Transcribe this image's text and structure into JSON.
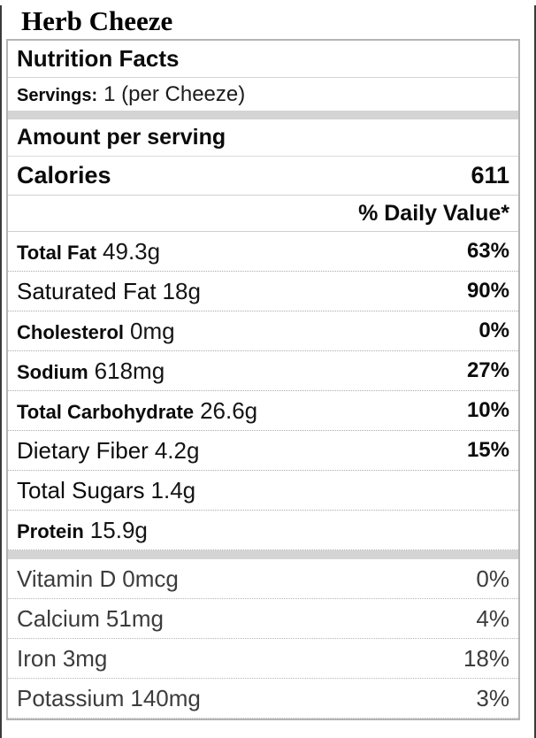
{
  "colors": {
    "text": "#0b0b0b",
    "muted_text": "#3c3c3c",
    "box_border": "#b4b4b4",
    "row_dotted_line": "#ababab",
    "section_bar": "#d4d4d4",
    "page_edge": "#3b3b3b"
  },
  "title": "Herb Cheeze",
  "label": {
    "heading": "Nutrition Facts",
    "servings_label": "Servings:",
    "servings_value": "1 (per Cheeze)",
    "amount_per_serving": "Amount per serving",
    "calories_label": "Calories",
    "calories_value": "611",
    "daily_value_heading": "% Daily Value*"
  },
  "nutrients": [
    {
      "name": "Total Fat",
      "amount": "49.3g",
      "daily_value": "63%"
    },
    {
      "name": "Saturated Fat",
      "amount": "18g",
      "daily_value": "90%"
    },
    {
      "name": "Cholesterol",
      "amount": "0mg",
      "daily_value": "0%"
    },
    {
      "name": "Sodium",
      "amount": "618mg",
      "daily_value": "27%"
    },
    {
      "name": "Total Carbohydrate",
      "amount": "26.6g",
      "daily_value": "10%"
    },
    {
      "name": "Dietary Fiber",
      "amount": "4.2g",
      "daily_value": "15%"
    },
    {
      "name": "Total Sugars",
      "amount": "1.4g",
      "daily_value": ""
    },
    {
      "name": "Protein",
      "amount": "15.9g",
      "daily_value": ""
    }
  ],
  "micronutrients": [
    {
      "name": "Vitamin D",
      "amount": "0mcg",
      "daily_value": "0%"
    },
    {
      "name": "Calcium",
      "amount": "51mg",
      "daily_value": "4%"
    },
    {
      "name": "Iron",
      "amount": "3mg",
      "daily_value": "18%"
    },
    {
      "name": "Potassium",
      "amount": "140mg",
      "daily_value": "3%"
    }
  ]
}
